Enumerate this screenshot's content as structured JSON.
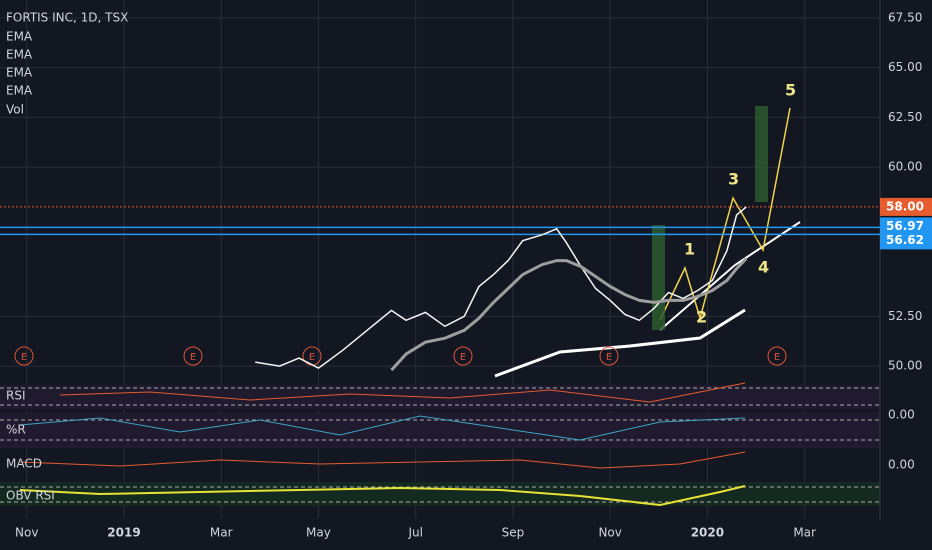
{
  "chart_data": {
    "type": "line",
    "title": "FORTIS INC, 1D, TSX",
    "legend_items": [
      "EMA",
      "EMA",
      "EMA",
      "EMA",
      "Vol"
    ],
    "x": [
      4.7,
      5.2,
      5.6,
      6.0,
      6.5,
      7.0,
      7.5,
      7.8,
      8.2,
      8.6,
      9.0,
      9.3,
      9.6,
      9.9,
      10.2,
      10.6,
      10.9,
      11.1,
      11.4,
      11.7,
      12.0,
      12.3,
      12.6,
      12.9,
      13.2,
      13.5,
      13.8,
      14.1,
      14.4,
      14.6,
      14.8
    ],
    "series": [
      {
        "color": "#f5f5f5",
        "values": [
          50.2,
          50.0,
          50.4,
          49.9,
          50.8,
          51.8,
          52.8,
          52.3,
          52.7,
          52.0,
          52.5,
          54.0,
          54.6,
          55.3,
          56.3,
          56.6,
          56.9,
          56.2,
          55.0,
          53.9,
          53.3,
          52.6,
          52.3,
          52.9,
          53.7,
          53.4,
          53.8,
          54.3,
          55.8,
          57.6,
          58.0
        ]
      },
      {
        "color": "#9e9e9e",
        "values": [
          null,
          null,
          null,
          null,
          null,
          null,
          49.8,
          50.6,
          51.2,
          51.4,
          51.8,
          52.4,
          53.2,
          53.9,
          54.6,
          55.1,
          55.3,
          55.3,
          55.0,
          54.5,
          54.0,
          53.6,
          53.3,
          53.2,
          53.3,
          53.3,
          53.5,
          53.8,
          54.3,
          54.9,
          55.4
        ]
      }
    ],
    "xlim": [
      -0.55,
      17.55
    ],
    "xticks": [
      {
        "value": 0,
        "label": "Nov"
      },
      {
        "value": 2,
        "label": "2019"
      },
      {
        "value": 4,
        "label": "Mar"
      },
      {
        "value": 6,
        "label": "May"
      },
      {
        "value": 8,
        "label": "Jul"
      },
      {
        "value": 10,
        "label": "Sep"
      },
      {
        "value": 12,
        "label": "Nov"
      },
      {
        "value": 14,
        "label": "2020"
      },
      {
        "value": 16,
        "label": "Mar"
      }
    ],
    "ylim": [
      49.3,
      68.4
    ],
    "yticks": [
      {
        "value": 50,
        "label": "50.00"
      },
      {
        "value": 52.5,
        "label": "52.50"
      },
      {
        "value": 60,
        "label": "60.00"
      },
      {
        "value": 62.5,
        "label": "62.50"
      },
      {
        "value": 65,
        "label": "65.00"
      },
      {
        "value": 67.5,
        "label": "67.50"
      }
    ],
    "price_lines": [
      {
        "value": 58,
        "label": "58.00",
        "color": "#e65c2e"
      },
      {
        "value": 56.97,
        "label": "56.97",
        "color": "#2196f3"
      },
      {
        "value": 56.62,
        "label": "56.62",
        "color": "#2196f3"
      }
    ],
    "wave_labels": [
      "1",
      "2",
      "3",
      "4",
      "5"
    ],
    "earnings": [
      "E",
      "E",
      "E",
      "E",
      "E",
      "E"
    ],
    "panes": [
      "RSI",
      "%R",
      "MACD",
      "OBV RSI"
    ],
    "pane_ticks": [
      "0.00",
      "0.00"
    ],
    "grid": true
  }
}
